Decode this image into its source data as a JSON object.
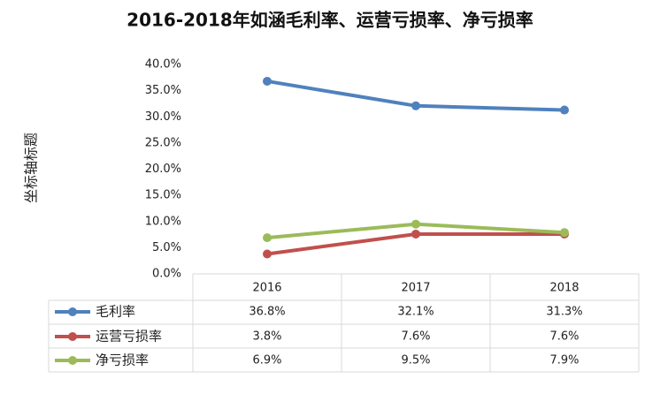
{
  "chart_data": {
    "type": "line",
    "title": "2016-2018年如涵毛利率、运营亏损率、净亏损率",
    "y_label": "坐标轴标题",
    "categories": [
      "2016",
      "2017",
      "2018"
    ],
    "series": [
      {
        "name": "毛利率",
        "color": "#4f81bd",
        "values": [
          36.8,
          32.1,
          31.3
        ],
        "value_labels": [
          "36.8%",
          "32.1%",
          "31.3%"
        ]
      },
      {
        "name": "运营亏损率",
        "color": "#c0504d",
        "values": [
          3.8,
          7.6,
          7.6
        ],
        "value_labels": [
          "3.8%",
          "7.6%",
          "7.6%"
        ]
      },
      {
        "name": "净亏损率",
        "color": "#9bbb59",
        "values": [
          6.9,
          9.5,
          7.9
        ],
        "value_labels": [
          "6.9%",
          "9.5%",
          "7.9%"
        ]
      }
    ],
    "ylim": [
      0,
      40
    ],
    "yticks": [
      {
        "value": 0,
        "label": "0.0%"
      },
      {
        "value": 5,
        "label": "5.0%"
      },
      {
        "value": 10,
        "label": "10.0%"
      },
      {
        "value": 15,
        "label": "15.0%"
      },
      {
        "value": 20,
        "label": "20.0%"
      },
      {
        "value": 25,
        "label": "25.0%"
      },
      {
        "value": 30,
        "label": "30.0%"
      },
      {
        "value": 35,
        "label": "35.0%"
      },
      {
        "value": 40,
        "label": "40.0%"
      }
    ],
    "grid": false,
    "data_table": true
  }
}
